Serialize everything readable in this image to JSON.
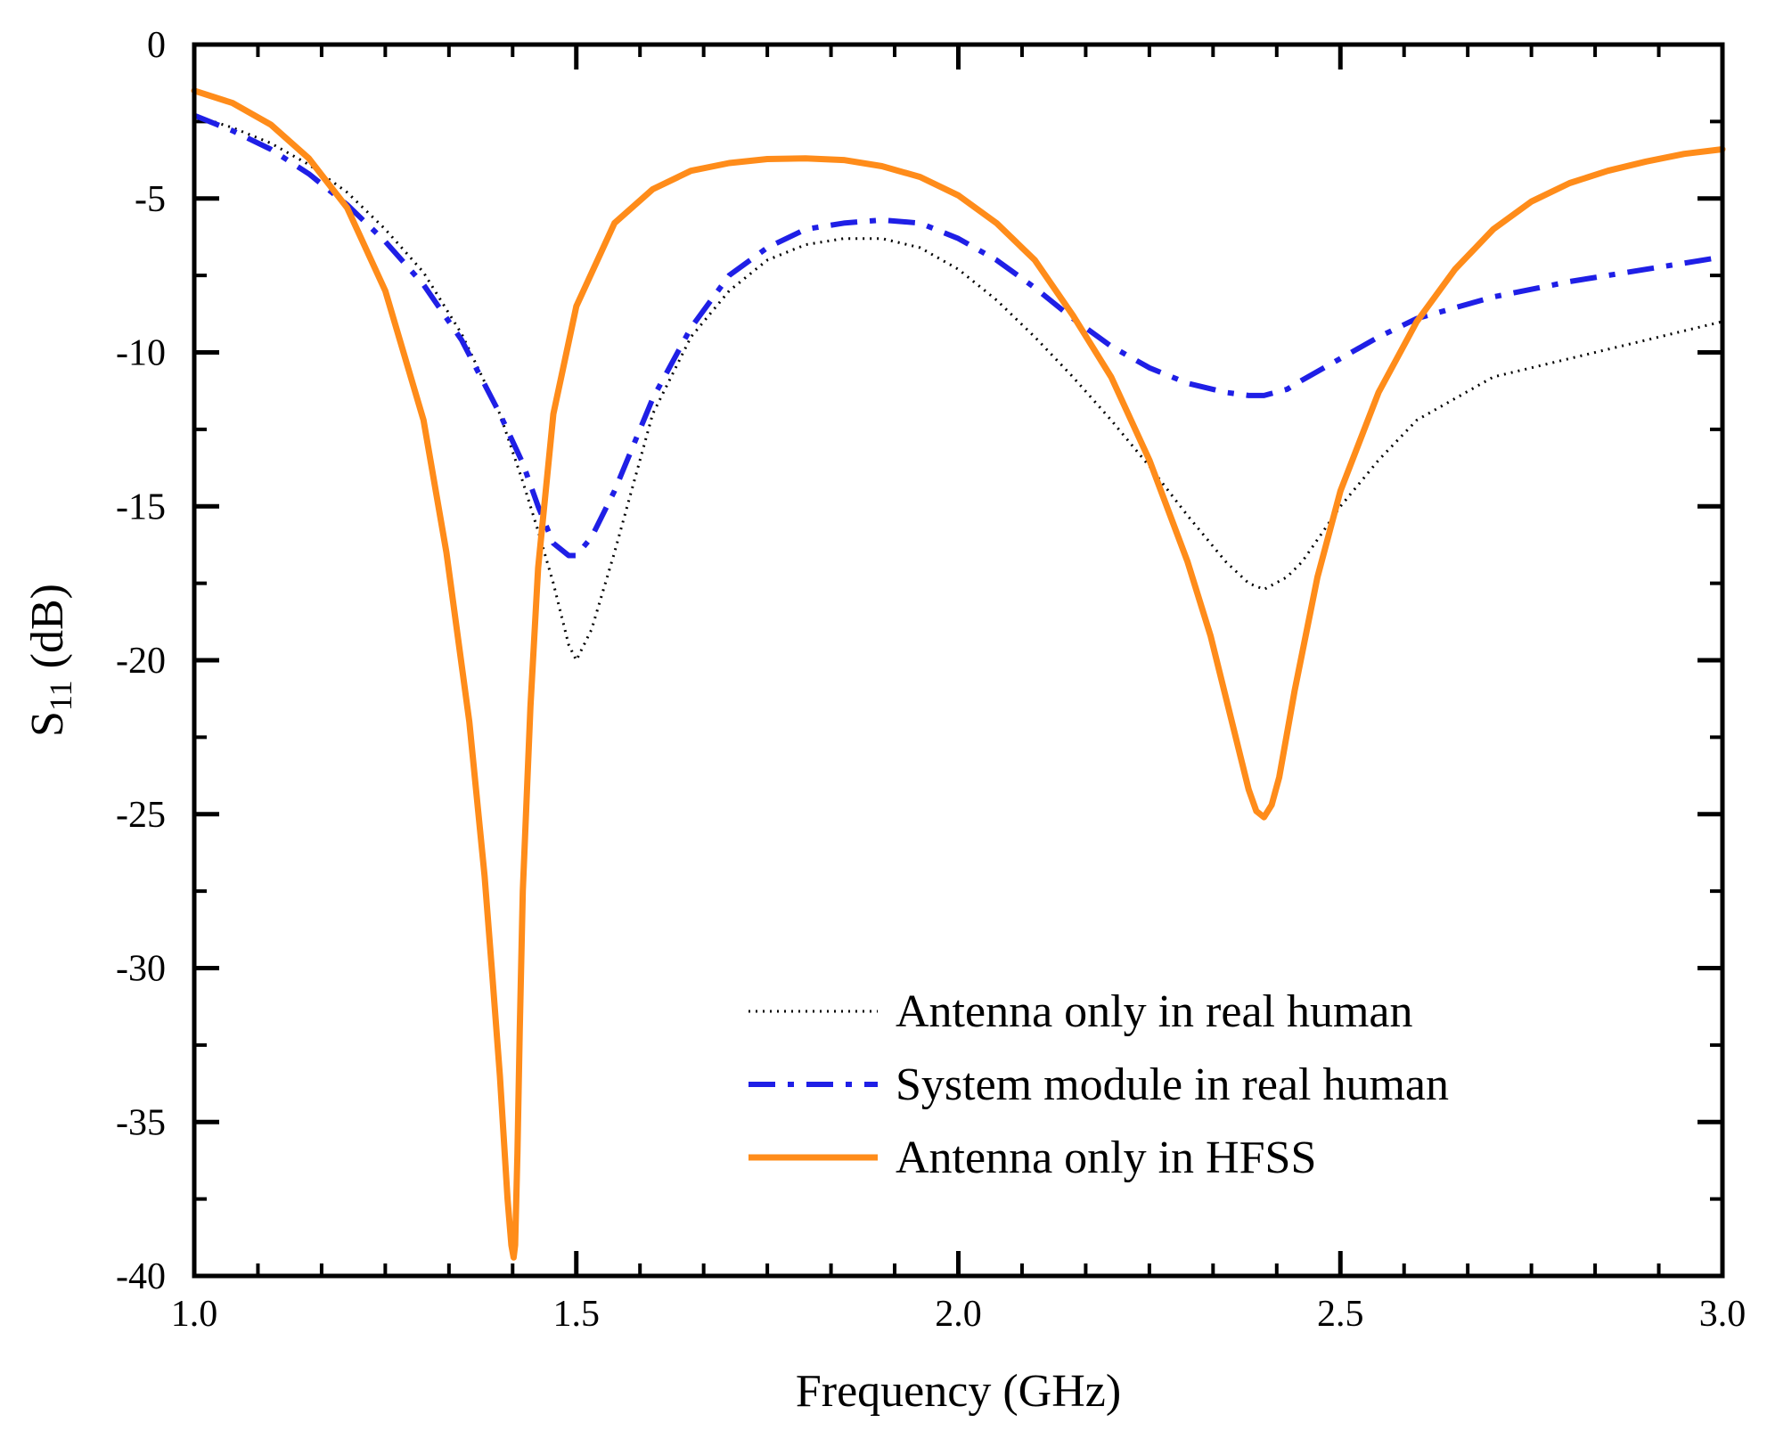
{
  "chart_data": {
    "type": "line",
    "title": "",
    "xlabel": "Frequency (GHz)",
    "ylabel_main": "S",
    "ylabel_sub": "11",
    "ylabel_unit": " (dB)",
    "xlim": [
      1.0,
      3.0
    ],
    "ylim": [
      -40,
      0
    ],
    "xticks": [
      1.0,
      1.5,
      2.0,
      2.5,
      3.0
    ],
    "xtick_labels": [
      "1.0",
      "1.5",
      "2.0",
      "2.5",
      "3.0"
    ],
    "yticks": [
      0,
      -5,
      -10,
      -15,
      -20,
      -25,
      -30,
      -35,
      -40
    ],
    "ytick_labels": [
      "0",
      "-5",
      "-10",
      "-15",
      "-20",
      "-25",
      "-30",
      "-35",
      "-40"
    ],
    "x_minor_step": 0.0833,
    "y_minor_step": 2.5,
    "grid": false,
    "legend_position": "bottom-right",
    "series": [
      {
        "name": "Antenna only in real human",
        "color": "#000000",
        "style": "dotted",
        "x": [
          1.0,
          1.05,
          1.1,
          1.15,
          1.2,
          1.25,
          1.3,
          1.35,
          1.4,
          1.43,
          1.45,
          1.47,
          1.49,
          1.5,
          1.52,
          1.55,
          1.6,
          1.65,
          1.7,
          1.75,
          1.8,
          1.85,
          1.9,
          1.95,
          2.0,
          2.05,
          2.1,
          2.15,
          2.2,
          2.25,
          2.3,
          2.35,
          2.38,
          2.4,
          2.43,
          2.45,
          2.5,
          2.55,
          2.6,
          2.7,
          2.8,
          2.9,
          3.0
        ],
        "y": [
          -2.3,
          -2.7,
          -3.2,
          -3.9,
          -4.8,
          -6.0,
          -7.4,
          -9.4,
          -12.0,
          -14.2,
          -15.8,
          -17.5,
          -19.5,
          -20.0,
          -19.0,
          -16.5,
          -12.0,
          -9.5,
          -8.0,
          -7.0,
          -6.5,
          -6.3,
          -6.3,
          -6.6,
          -7.3,
          -8.3,
          -9.5,
          -10.8,
          -12.2,
          -13.7,
          -15.3,
          -16.8,
          -17.5,
          -17.7,
          -17.3,
          -16.8,
          -15.0,
          -13.5,
          -12.2,
          -10.8,
          -10.2,
          -9.6,
          -9.0
        ]
      },
      {
        "name": "System module in real human",
        "color": "#1f1fe6",
        "style": "dashdot",
        "x": [
          1.0,
          1.05,
          1.1,
          1.15,
          1.2,
          1.25,
          1.3,
          1.35,
          1.4,
          1.43,
          1.45,
          1.47,
          1.49,
          1.5,
          1.52,
          1.55,
          1.6,
          1.65,
          1.7,
          1.75,
          1.8,
          1.85,
          1.9,
          1.95,
          2.0,
          2.05,
          2.1,
          2.15,
          2.2,
          2.25,
          2.3,
          2.35,
          2.38,
          2.4,
          2.43,
          2.45,
          2.5,
          2.55,
          2.6,
          2.7,
          2.8,
          2.9,
          3.0
        ],
        "y": [
          -2.3,
          -2.8,
          -3.4,
          -4.2,
          -5.2,
          -6.4,
          -7.8,
          -9.6,
          -12.0,
          -13.6,
          -15.0,
          -16.2,
          -16.6,
          -16.6,
          -16.0,
          -14.5,
          -11.5,
          -9.2,
          -7.5,
          -6.6,
          -6.0,
          -5.8,
          -5.7,
          -5.8,
          -6.3,
          -7.0,
          -7.9,
          -8.9,
          -9.8,
          -10.5,
          -11.0,
          -11.3,
          -11.4,
          -11.4,
          -11.2,
          -10.9,
          -10.2,
          -9.5,
          -8.9,
          -8.2,
          -7.7,
          -7.3,
          -6.9
        ]
      },
      {
        "name": "Antenna only in HFSS",
        "color": "#ff8c1a",
        "style": "solid",
        "x": [
          1.0,
          1.05,
          1.1,
          1.15,
          1.2,
          1.25,
          1.3,
          1.33,
          1.36,
          1.38,
          1.39,
          1.4,
          1.405,
          1.41,
          1.415,
          1.418,
          1.42,
          1.423,
          1.426,
          1.43,
          1.44,
          1.45,
          1.47,
          1.5,
          1.55,
          1.6,
          1.65,
          1.7,
          1.75,
          1.8,
          1.85,
          1.9,
          1.95,
          2.0,
          2.05,
          2.1,
          2.15,
          2.2,
          2.25,
          2.3,
          2.33,
          2.36,
          2.38,
          2.39,
          2.4,
          2.41,
          2.42,
          2.44,
          2.47,
          2.5,
          2.55,
          2.6,
          2.65,
          2.7,
          2.75,
          2.8,
          2.85,
          2.9,
          2.95,
          3.0
        ],
        "y": [
          -1.5,
          -1.9,
          -2.6,
          -3.7,
          -5.3,
          -8.0,
          -12.2,
          -16.5,
          -22.0,
          -27.0,
          -30.2,
          -33.5,
          -35.5,
          -37.5,
          -39.0,
          -39.4,
          -39.0,
          -36.0,
          -32.0,
          -27.5,
          -21.5,
          -17.0,
          -12.0,
          -8.5,
          -5.8,
          -4.7,
          -4.1,
          -3.85,
          -3.72,
          -3.7,
          -3.75,
          -3.95,
          -4.3,
          -4.9,
          -5.8,
          -7.0,
          -8.8,
          -10.8,
          -13.5,
          -16.8,
          -19.2,
          -22.2,
          -24.2,
          -24.9,
          -25.1,
          -24.7,
          -23.8,
          -21.0,
          -17.3,
          -14.5,
          -11.3,
          -9.0,
          -7.3,
          -6.0,
          -5.1,
          -4.5,
          -4.1,
          -3.8,
          -3.55,
          -3.4
        ]
      }
    ]
  }
}
